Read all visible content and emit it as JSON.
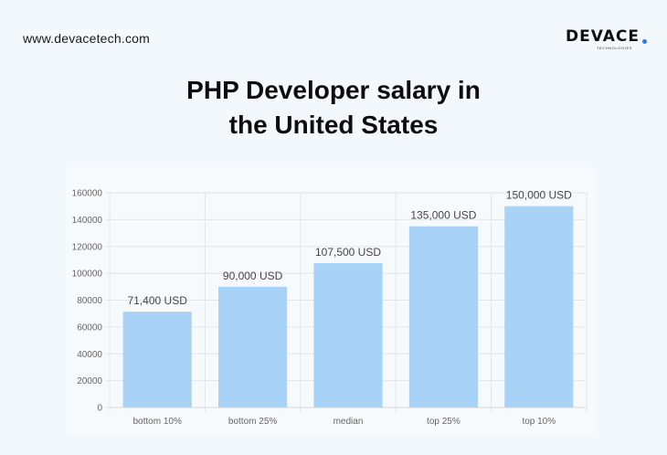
{
  "header": {
    "site_url": "www.devacetech.com",
    "logo_text": "DEVACE",
    "logo_subtext": "TECHNOLOGIES",
    "accent_color": "#2f7df6"
  },
  "title": {
    "line1": "PHP Developer salary in",
    "line2": "the United States"
  },
  "chart_data": {
    "type": "bar",
    "categories": [
      "bottom 10%",
      "bottom 25%",
      "median",
      "top 25%",
      "top 10%"
    ],
    "values": [
      71400,
      90000,
      107500,
      135000,
      150000
    ],
    "value_labels": [
      "71,400 USD",
      "90,000 USD",
      "107,500 USD",
      "135,000 USD",
      "150,000 USD"
    ],
    "ylim": [
      0,
      160000
    ],
    "yticks": [
      0,
      20000,
      40000,
      60000,
      80000,
      100000,
      120000,
      140000,
      160000
    ],
    "xlabel": "",
    "ylabel": "",
    "grid": true,
    "bar_color": "#a8d3f7"
  }
}
